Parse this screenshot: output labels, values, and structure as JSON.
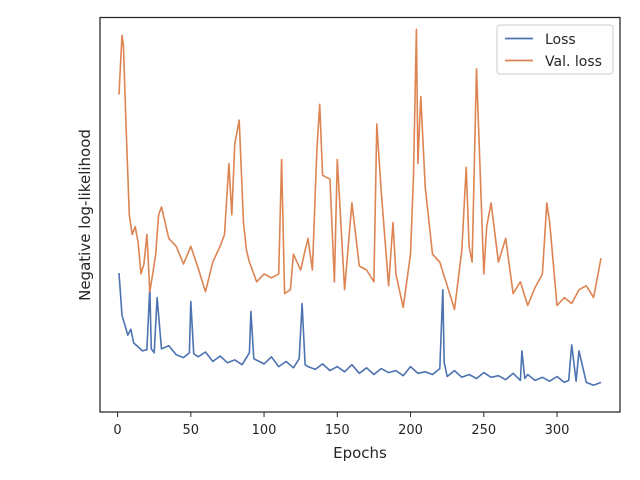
{
  "chart_data": {
    "type": "line",
    "title": "",
    "xlabel": "Epochs",
    "ylabel": "Negative log-likelihood",
    "xlim": [
      -12,
      343
    ],
    "ylim": [
      0,
      100
    ],
    "xticks": [
      0,
      50,
      100,
      150,
      200,
      250,
      300
    ],
    "yticks_shown": false,
    "grid": false,
    "legend_position": "top-right",
    "series": [
      {
        "name": "Loss",
        "color": "#4c72b0",
        "x": [
          1,
          3,
          5,
          7,
          9,
          11,
          14,
          17,
          20,
          22,
          23,
          25,
          27,
          30,
          35,
          40,
          45,
          49,
          50,
          52,
          55,
          60,
          65,
          70,
          75,
          80,
          85,
          90,
          91,
          93,
          100,
          105,
          110,
          115,
          120,
          124,
          126,
          128,
          130,
          135,
          140,
          145,
          150,
          155,
          160,
          165,
          170,
          175,
          180,
          185,
          190,
          195,
          200,
          205,
          210,
          215,
          220,
          222,
          223,
          225,
          230,
          235,
          240,
          245,
          250,
          255,
          260,
          265,
          270,
          275,
          276,
          278,
          280,
          285,
          290,
          295,
          300,
          305,
          308,
          310,
          313,
          315,
          320,
          325,
          330
        ],
        "values": [
          35.2,
          24.5,
          22.0,
          19.5,
          21.0,
          17.5,
          16.5,
          15.5,
          15.8,
          31.5,
          16.0,
          15.0,
          29.0,
          16.0,
          16.8,
          14.5,
          13.8,
          15.0,
          28.0,
          14.8,
          14.0,
          15.2,
          12.8,
          14.2,
          12.5,
          13.2,
          12.0,
          15.0,
          25.5,
          13.5,
          12.2,
          14.0,
          11.5,
          12.8,
          11.2,
          13.5,
          27.5,
          12.0,
          11.5,
          10.8,
          12.2,
          10.5,
          11.5,
          10.2,
          12.0,
          9.8,
          11.2,
          9.5,
          11.0,
          10.0,
          10.5,
          9.2,
          11.5,
          9.8,
          10.2,
          9.5,
          11.0,
          31.0,
          12.5,
          9.0,
          10.5,
          8.8,
          9.5,
          8.5,
          10.0,
          8.8,
          9.2,
          8.2,
          9.8,
          8.0,
          15.5,
          8.5,
          9.5,
          8.0,
          8.8,
          7.8,
          9.0,
          7.5,
          8.0,
          17.0,
          7.8,
          15.5,
          7.5,
          6.8,
          7.5
        ]
      },
      {
        "name": "Val. loss",
        "color": "#dd8452",
        "x": [
          1,
          3,
          4,
          6,
          8,
          10,
          12,
          14,
          16,
          18,
          20,
          22,
          24,
          26,
          28,
          30,
          35,
          40,
          45,
          50,
          55,
          60,
          65,
          70,
          73,
          76,
          78,
          80,
          83,
          86,
          88,
          90,
          95,
          100,
          105,
          110,
          112,
          114,
          118,
          120,
          125,
          128,
          130,
          133,
          136,
          138,
          140,
          145,
          148,
          150,
          155,
          160,
          165,
          170,
          175,
          177,
          180,
          185,
          188,
          190,
          195,
          200,
          202,
          204,
          205,
          207,
          210,
          215,
          220,
          225,
          230,
          235,
          238,
          240,
          242,
          245,
          250,
          252,
          255,
          260,
          265,
          270,
          275,
          280,
          285,
          290,
          293,
          295,
          300,
          305,
          310,
          315,
          320,
          325,
          330
        ],
        "values": [
          80.5,
          95.5,
          93.0,
          70.0,
          50.0,
          45.0,
          47.0,
          43.0,
          35.0,
          37.5,
          45.0,
          30.5,
          35.0,
          40.0,
          50.0,
          52.0,
          44.0,
          42.0,
          37.5,
          42.0,
          36.5,
          30.5,
          38.0,
          42.0,
          45.0,
          63.0,
          50.0,
          68.0,
          74.0,
          48.0,
          41.0,
          38.0,
          33.0,
          35.0,
          34.0,
          35.0,
          64.0,
          30.0,
          31.0,
          40.0,
          36.0,
          41.0,
          44.0,
          36.0,
          66.0,
          78.0,
          60.0,
          59.0,
          33.0,
          64.0,
          31.0,
          53.0,
          37.0,
          36.0,
          33.0,
          73.0,
          56.0,
          32.0,
          48.0,
          35.0,
          26.5,
          40.0,
          60.0,
          97.0,
          63.0,
          80.0,
          57.0,
          40.0,
          38.0,
          32.0,
          26.0,
          41.0,
          62.0,
          42.0,
          38.0,
          87.0,
          35.0,
          47.0,
          53.0,
          38.0,
          44.0,
          30.0,
          33.0,
          27.0,
          31.5,
          35.0,
          53.0,
          48.0,
          27.0,
          29.0,
          27.5,
          31.0,
          32.0,
          29.0,
          39.0
        ]
      }
    ]
  }
}
